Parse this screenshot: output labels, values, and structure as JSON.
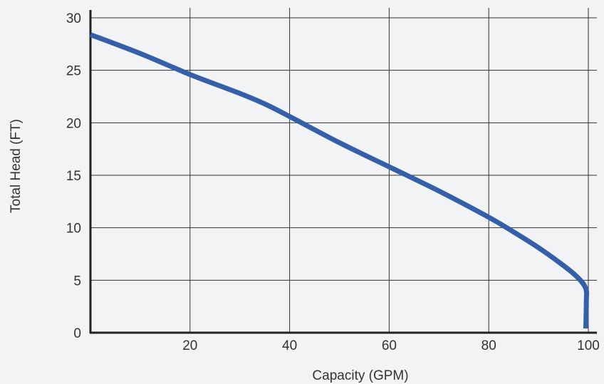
{
  "chart_data": {
    "type": "line",
    "title": "",
    "xlabel": "Capacity (GPM)",
    "ylabel": "Total Head (FT)",
    "xlim": [
      0,
      100
    ],
    "ylim": [
      0,
      30
    ],
    "x_ticks": [
      20,
      40,
      60,
      80,
      100
    ],
    "y_ticks": [
      0,
      5,
      10,
      15,
      20,
      25,
      30
    ],
    "grid": true,
    "legend": "none",
    "series": [
      {
        "color": "#355fa8",
        "points": [
          [
            0,
            28.4
          ],
          [
            10,
            26.6
          ],
          [
            20,
            24.6
          ],
          [
            30,
            22.8
          ],
          [
            35,
            21.8
          ],
          [
            40,
            20.6
          ],
          [
            50,
            18.1
          ],
          [
            60,
            15.8
          ],
          [
            70,
            13.5
          ],
          [
            80,
            11.0
          ],
          [
            85,
            9.6
          ],
          [
            90,
            8.1
          ],
          [
            95,
            6.4
          ],
          [
            98,
            5.2
          ],
          [
            99.5,
            4.2
          ],
          [
            99.6,
            3.0
          ],
          [
            99.5,
            0.4
          ]
        ]
      }
    ]
  },
  "colors": {
    "background": "#f2f3f5",
    "grid": "#333333",
    "axis": "#222222",
    "line": "#355fa8"
  }
}
